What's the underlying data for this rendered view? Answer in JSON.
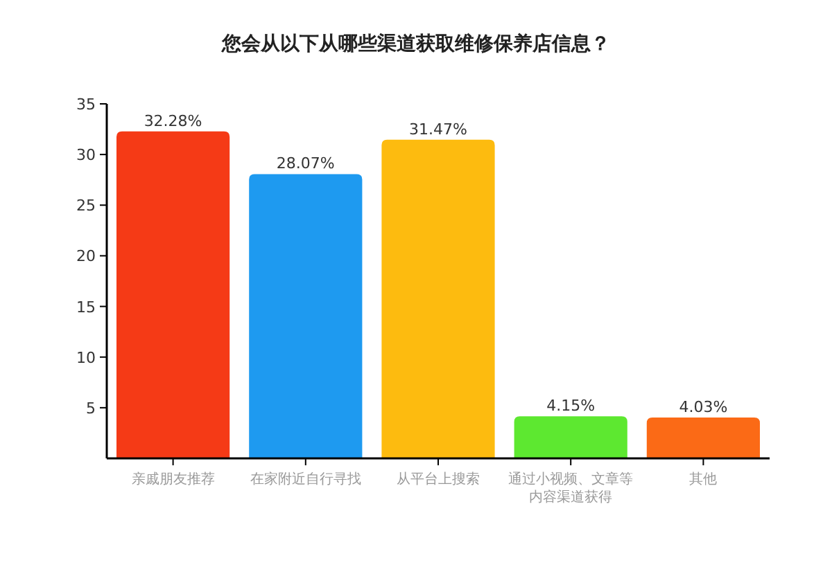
{
  "chart_data": {
    "type": "bar",
    "title": "您会从以下从哪些渠道获取维修保养店信息？",
    "categories": [
      "亲戚朋友推荐",
      "在家附近自行寻找",
      "从平台上搜索",
      "通过小视频、文章等内容渠道获得",
      "其他"
    ],
    "values": [
      32.28,
      28.07,
      31.47,
      4.15,
      4.03
    ],
    "colors": [
      "#f53a16",
      "#1e9af0",
      "#fdbb0f",
      "#5de830",
      "#fb6a16"
    ],
    "value_labels": [
      "32.28%",
      "28.07%",
      "31.47%",
      "4.15%",
      "4.03%"
    ],
    "ylim": [
      0,
      35
    ],
    "yticks": [
      5,
      10,
      15,
      20,
      25,
      30,
      35
    ]
  }
}
